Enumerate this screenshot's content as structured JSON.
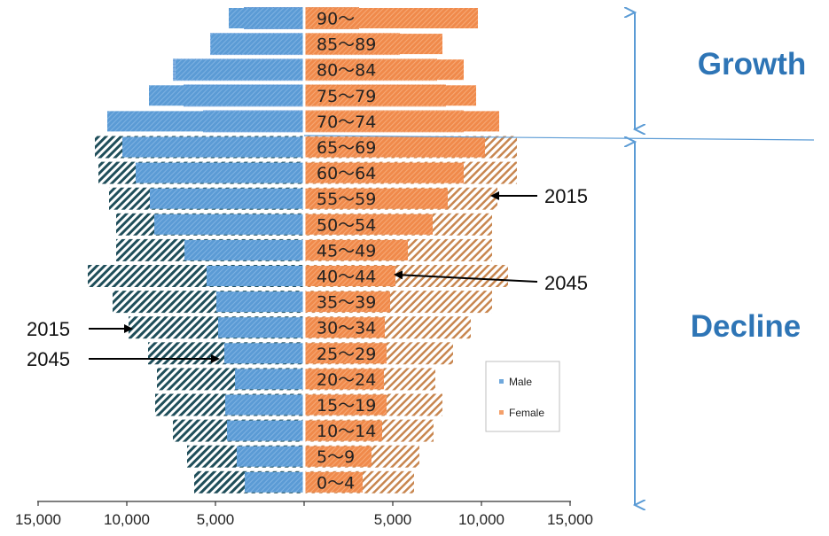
{
  "chart_data": {
    "type": "bar",
    "orientation": "horizontal",
    "layout": "population-pyramid",
    "categories": [
      "0～4",
      "5～9",
      "10～14",
      "15～19",
      "20～24",
      "25～29",
      "30～34",
      "35～39",
      "40～44",
      "45～49",
      "50～54",
      "55～59",
      "60～64",
      "65～69",
      "70～74",
      "75～79",
      "80～84",
      "85～89",
      "90～"
    ],
    "series": [
      {
        "name": "Male",
        "year": "2015",
        "values": [
          6200,
          6600,
          7400,
          8400,
          8300,
          8800,
          9900,
          10800,
          12200,
          10600,
          10600,
          11000,
          11600,
          11800,
          5700,
          6800,
          7400,
          5300,
          3400
        ]
      },
      {
        "name": "Male",
        "year": "2045",
        "values": [
          3350,
          3800,
          4350,
          4450,
          3900,
          4500,
          4850,
          4950,
          5500,
          6750,
          8450,
          8700,
          9500,
          10250,
          11100,
          8750,
          7250,
          5250,
          4250
        ]
      },
      {
        "name": "Female",
        "year": "2015",
        "values": [
          6200,
          6500,
          7300,
          7800,
          7400,
          8400,
          9400,
          10600,
          11500,
          10600,
          10600,
          10900,
          12000,
          12000,
          9000,
          8000,
          7500,
          5400,
          3100
        ]
      },
      {
        "name": "Female",
        "year": "2045",
        "values": [
          3300,
          3800,
          4400,
          4650,
          4500,
          4650,
          4550,
          4850,
          5150,
          5850,
          7250,
          8100,
          9000,
          10200,
          11000,
          9700,
          9000,
          7800,
          9800
        ]
      }
    ],
    "xticks": [
      "15,000",
      "10,000",
      "5,000",
      "5,000",
      "10,000",
      "15,000"
    ],
    "xlim": [
      -15000,
      15000
    ],
    "legend": {
      "position": "right",
      "entries": [
        "Male",
        "Female"
      ]
    },
    "annotations": [
      {
        "text": "2015",
        "side": "right",
        "category": "55～59"
      },
      {
        "text": "2045",
        "side": "right",
        "category": "40～44"
      },
      {
        "text": "2015",
        "side": "left",
        "category": "30～34"
      },
      {
        "text": "2045",
        "side": "left",
        "category": "25～29"
      }
    ],
    "regions": [
      {
        "label": "Growth",
        "from": "70～74",
        "to": "90～"
      },
      {
        "label": "Decline",
        "from": "0～4",
        "to": "65～69"
      }
    ]
  },
  "colors": {
    "male": "#6fa8dc",
    "male_2045": "#5b9bd5",
    "male_hatch": "#1f4e5a",
    "female": "#f4a06a",
    "female_2045": "#f08a4b",
    "female_hatch": "#b07a4a",
    "region_label": "#2e75b6",
    "arrow": "#5b9bd5",
    "axis": "#333333",
    "text": "#222222"
  }
}
